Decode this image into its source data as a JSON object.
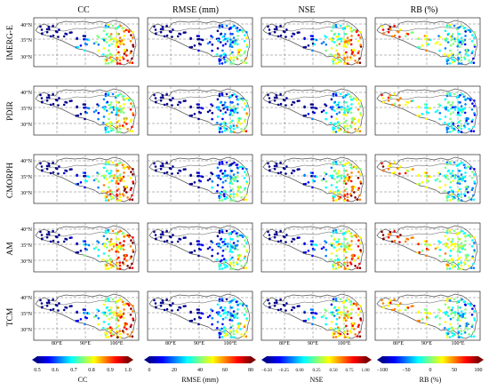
{
  "columns": [
    {
      "title": "CC"
    },
    {
      "title": "RMSE (mm)"
    },
    {
      "title": "NSE"
    },
    {
      "title": "RB (%)"
    }
  ],
  "rows": [
    {
      "label": "IMERG-E"
    },
    {
      "label": "PDIR"
    },
    {
      "label": "CMORPH"
    },
    {
      "label": "AM"
    },
    {
      "label": "TCM"
    }
  ],
  "lat_ticks": [
    "40°N",
    "35°N",
    "30°N"
  ],
  "lon_ticks": [
    "80°E",
    "90°E",
    "100°E"
  ],
  "colorbars": [
    {
      "label": "CC",
      "ticks": [
        "0.5",
        "0.6",
        "0.7",
        "0.8",
        "0.9",
        "1.0"
      ]
    },
    {
      "label": "RMSE (mm)",
      "ticks": [
        "0",
        "20",
        "40",
        "60",
        "80"
      ]
    },
    {
      "label": "NSE",
      "ticks": [
        "−0.50",
        "−0.25",
        "0.00",
        "0.25",
        "0.50",
        "0.75",
        "1.00"
      ]
    },
    {
      "label": "RB (%)",
      "ticks": [
        "−100",
        "−50",
        "0",
        "50",
        "100"
      ]
    }
  ],
  "colormap": [
    "#00008f",
    "#0000ff",
    "#0080ff",
    "#00ffff",
    "#80ff80",
    "#ffff00",
    "#ff8000",
    "#ff0000",
    "#800000"
  ]
}
